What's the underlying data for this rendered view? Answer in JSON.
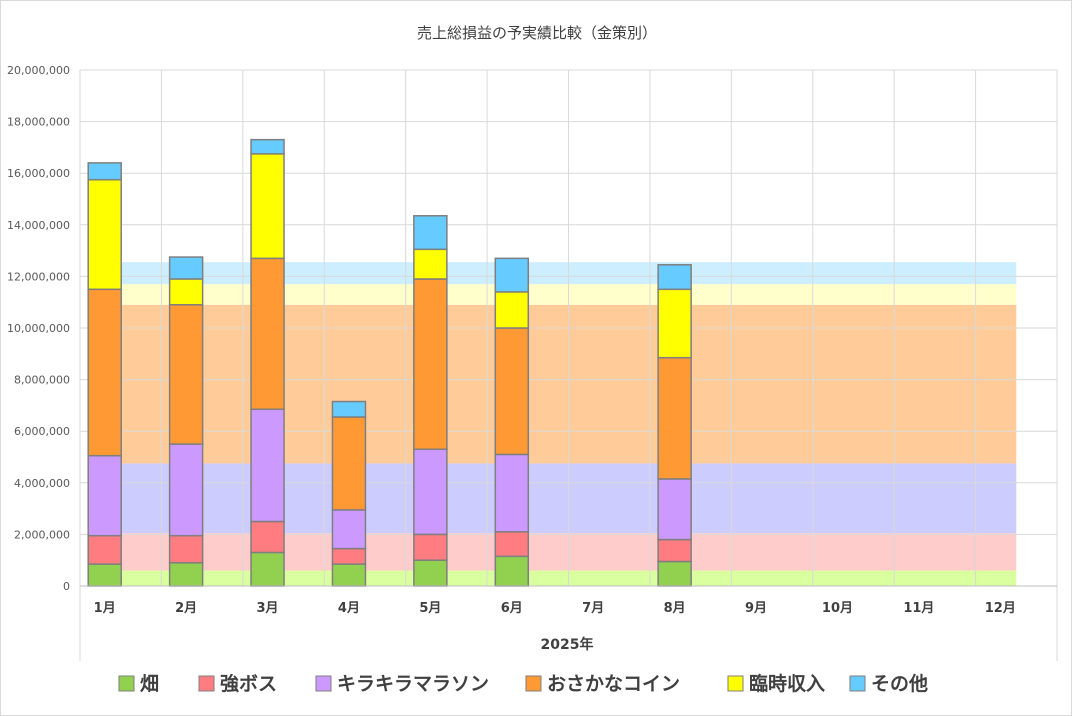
{
  "chart_data": {
    "type": "bar",
    "stacked": true,
    "title": "売上総損益の予実績比較（金策別）",
    "xlabel": "2025年",
    "ylabel": "",
    "ylim": [
      0,
      20000000
    ],
    "y_ticks": [
      "0",
      "2,000,000",
      "4,000,000",
      "6,000,000",
      "8,000,000",
      "10,000,000",
      "12,000,000",
      "14,000,000",
      "16,000,000",
      "18,000,000",
      "20,000,000"
    ],
    "categories": [
      "1月",
      "2月",
      "3月",
      "4月",
      "5月",
      "6月",
      "7月",
      "8月",
      "9月",
      "10月",
      "11月",
      "12月"
    ],
    "grid": true,
    "legend_position": "bottom",
    "series": [
      {
        "name": "畑",
        "color": "#92d050",
        "plan_color": "#d9ff9e",
        "plan": 600000,
        "values": [
          850000,
          900000,
          1300000,
          850000,
          1000000,
          1150000,
          null,
          950000,
          null,
          null,
          null,
          null
        ]
      },
      {
        "name": "強ボス",
        "color": "#ff7c80",
        "plan_color": "#ffcccc",
        "plan": 1450000,
        "values": [
          1100000,
          1050000,
          1200000,
          600000,
          1000000,
          950000,
          null,
          850000,
          null,
          null,
          null,
          null
        ]
      },
      {
        "name": "キラキラマラソン",
        "color": "#cc99ff",
        "plan_color": "#ccccff",
        "plan": 2700000,
        "values": [
          3100000,
          3550000,
          4350000,
          1500000,
          3300000,
          3000000,
          null,
          2350000,
          null,
          null,
          null,
          null
        ]
      },
      {
        "name": "おさかなコイン",
        "color": "#ff9933",
        "plan_color": "#ffcc99",
        "plan": 6150000,
        "values": [
          6450000,
          5400000,
          5850000,
          3600000,
          6600000,
          4900000,
          null,
          4700000,
          null,
          null,
          null,
          null
        ]
      },
      {
        "name": "臨時収入",
        "color": "#ffff00",
        "plan_color": "#ffffcc",
        "plan": 800000,
        "values": [
          4250000,
          1000000,
          4050000,
          null,
          1150000,
          1400000,
          null,
          2650000,
          null,
          null,
          null,
          null
        ]
      },
      {
        "name": "その他",
        "color": "#66ccff",
        "plan_color": "#cceeff",
        "plan": 850000,
        "values": [
          650000,
          850000,
          550000,
          600000,
          1300000,
          1300000,
          null,
          950000,
          null,
          null,
          null,
          null
        ]
      }
    ]
  }
}
